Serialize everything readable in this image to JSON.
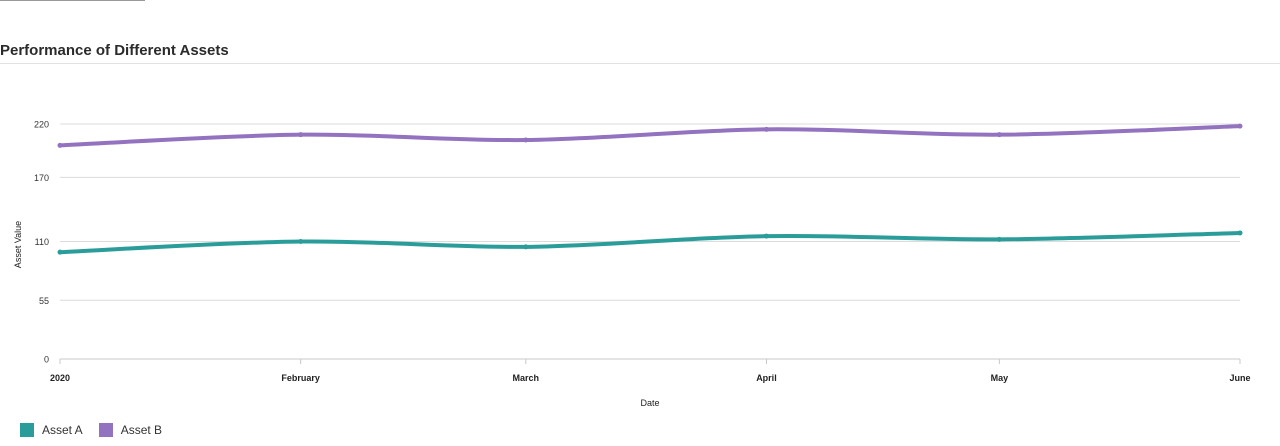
{
  "header": {
    "title": "Performance of Different Assets"
  },
  "legend": [
    {
      "label": "Asset A",
      "color": "#2a9d9b"
    },
    {
      "label": "Asset B",
      "color": "#9372c0"
    }
  ],
  "chart_data": {
    "type": "line",
    "title": "Performance of Different Assets",
    "xlabel": "Date",
    "ylabel": "Asset Value",
    "x": [
      "2020",
      "February",
      "March",
      "April",
      "May",
      "June"
    ],
    "yticks": [
      0,
      55,
      110,
      170,
      220
    ],
    "ylim": [
      0,
      220
    ],
    "grid": true,
    "legend_position": "bottom-left",
    "series": [
      {
        "name": "Asset A",
        "color": "#2a9d9b",
        "values": [
          100,
          110,
          105,
          115,
          112,
          118
        ]
      },
      {
        "name": "Asset B",
        "color": "#9372c0",
        "values": [
          200,
          210,
          205,
          215,
          210,
          218
        ]
      }
    ]
  }
}
